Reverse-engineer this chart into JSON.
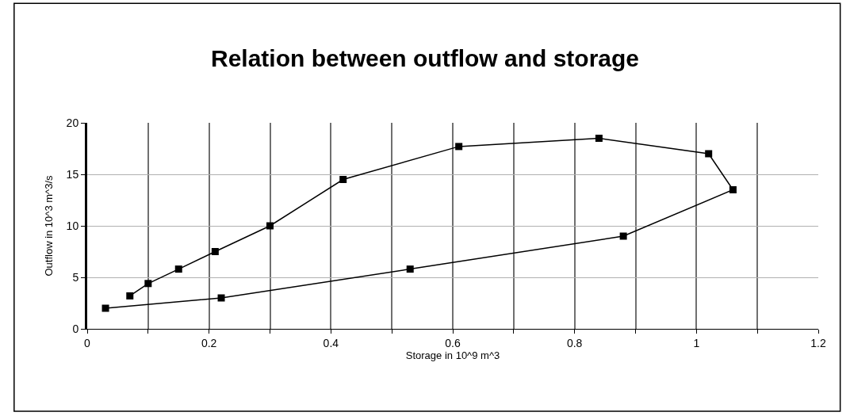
{
  "chart_data": {
    "type": "line",
    "title": "Relation between outflow and storage",
    "xlabel": "Storage in 10^9 m^3",
    "ylabel": "Outflow in 10^3 m^3/s",
    "x": [
      0.03,
      0.22,
      0.53,
      0.88,
      1.06,
      1.02,
      0.84,
      0.61,
      0.42,
      0.3,
      0.21,
      0.15,
      0.1,
      0.07
    ],
    "series": [
      {
        "color": "#000000",
        "values": [
          2,
          3,
          5.8,
          9,
          13.5,
          17,
          18.5,
          17.7,
          14.5,
          10,
          7.5,
          5.8,
          4.4,
          3.2
        ]
      }
    ],
    "xlim": [
      0,
      1.2
    ],
    "ylim": [
      0,
      20
    ],
    "xticks": [
      0,
      {
        "value": 0.1,
        "label": null
      },
      {
        "value": 0.2,
        "label": "0.2"
      },
      {
        "value": 0.3,
        "label": null
      },
      {
        "value": 0.4,
        "label": "0.4"
      },
      {
        "value": 0.5,
        "label": null
      },
      {
        "value": 0.6,
        "label": "0.6"
      },
      {
        "value": 0.7,
        "label": null
      },
      {
        "value": 0.8,
        "label": "0.8"
      },
      {
        "value": 0.9,
        "label": null
      },
      1,
      {
        "value": 1.1,
        "label": null
      },
      {
        "value": 1.2,
        "label": "1.2"
      }
    ],
    "yticks": [
      0,
      5,
      10,
      15,
      20
    ],
    "grid": true,
    "marker": "square",
    "line_style": "solid"
  }
}
